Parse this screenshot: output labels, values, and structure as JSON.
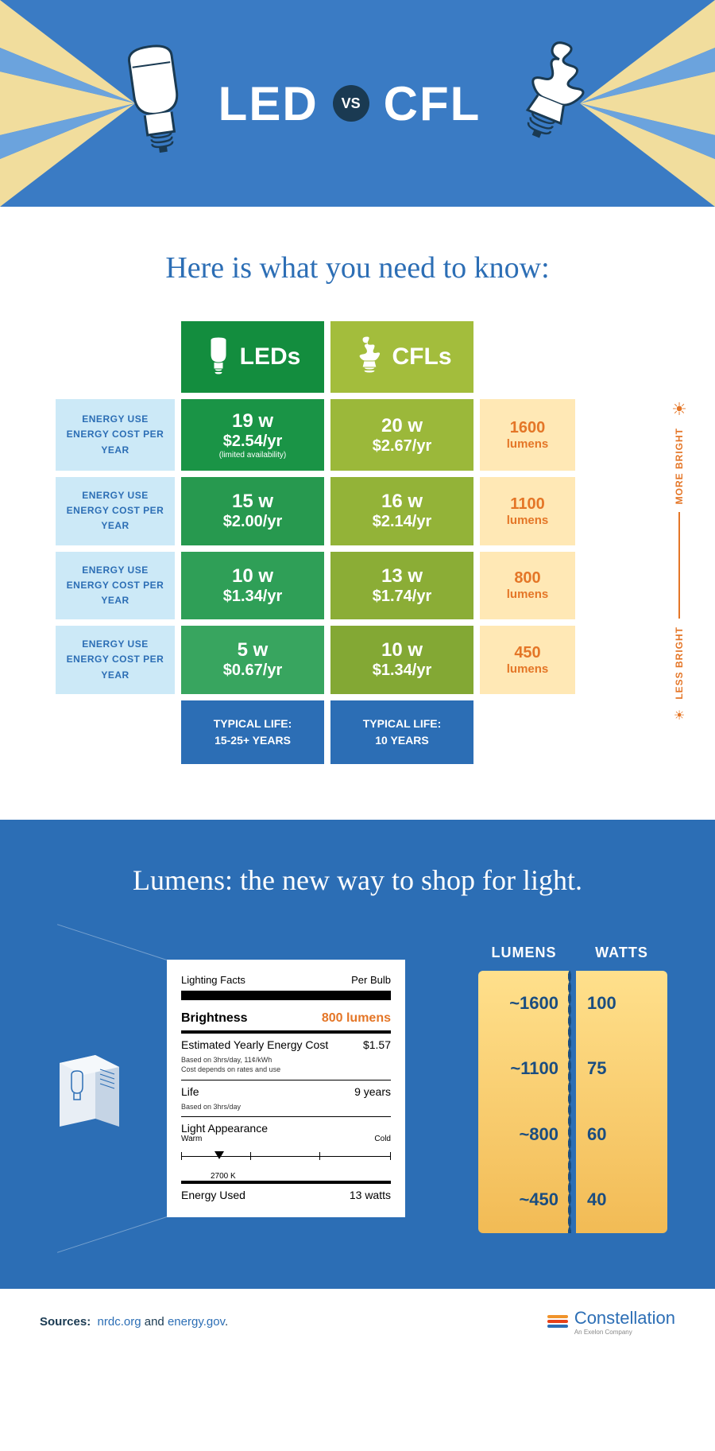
{
  "colors": {
    "blue": "#2c6eb5",
    "hero_blue": "#3a7bc4",
    "dark_blue": "#1a3a52",
    "ray_yellow": "#f1dd9d",
    "pale_blue": "#cce9f7",
    "lumen_bg": "#ffe8b5",
    "orange": "#e47627",
    "white": "#ffffff",
    "led_greens": [
      "#138d3e",
      "#1a9446",
      "#27994f",
      "#2f9f57",
      "#38a55f"
    ],
    "cfl_greens": [
      "#a3bd3c",
      "#9bb83a",
      "#93b338",
      "#8bad36",
      "#83a834"
    ]
  },
  "hero": {
    "left": "LED",
    "vs": "VS",
    "right": "CFL"
  },
  "intro": "Here is what you need to know:",
  "table": {
    "headers": {
      "led": "LEDs",
      "cfl": "CFLs"
    },
    "row_label_line1": "ENERGY USE",
    "row_label_line2": "ENERGY COST PER YEAR",
    "rows": [
      {
        "led_w": "19 w",
        "led_cost": "$2.54/yr",
        "led_note": "(limited availability)",
        "cfl_w": "20 w",
        "cfl_cost": "$2.67/yr",
        "lumens": "1600",
        "lumens_word": "lumens"
      },
      {
        "led_w": "15 w",
        "led_cost": "$2.00/yr",
        "led_note": "",
        "cfl_w": "16 w",
        "cfl_cost": "$2.14/yr",
        "lumens": "1100",
        "lumens_word": "lumens"
      },
      {
        "led_w": "10 w",
        "led_cost": "$1.34/yr",
        "led_note": "",
        "cfl_w": "13 w",
        "cfl_cost": "$1.74/yr",
        "lumens": "800",
        "lumens_word": "lumens"
      },
      {
        "led_w": "5 w",
        "led_cost": "$0.67/yr",
        "led_note": "",
        "cfl_w": "10 w",
        "cfl_cost": "$1.34/yr",
        "lumens": "450",
        "lumens_word": "lumens"
      }
    ],
    "life": {
      "led_l1": "TYPICAL LIFE:",
      "led_l2": "15-25+ YEARS",
      "cfl_l1": "TYPICAL LIFE:",
      "cfl_l2": "10 YEARS"
    },
    "scale": {
      "top": "MORE BRIGHT",
      "bottom": "LESS BRIGHT"
    }
  },
  "lumens": {
    "title": "Lumens: the new way to shop for light.",
    "facts": {
      "heading": "Lighting Facts",
      "per": "Per Bulb",
      "brightness_label": "Brightness",
      "brightness_value": "800 lumens",
      "cost_label": "Estimated Yearly Energy Cost",
      "cost_value": "$1.57",
      "cost_sub": "Based on 3hrs/day, 11¢/kWh\nCost depends on rates and use",
      "life_label": "Life",
      "life_value": "9 years",
      "life_sub": "Based on 3hrs/day",
      "appearance_label": "Light Appearance",
      "app_warm": "Warm",
      "app_cold": "Cold",
      "app_value": "2700 K",
      "energy_label": "Energy Used",
      "energy_value": "13 watts"
    },
    "columns": {
      "lumens_header": "LUMENS",
      "watts_header": "WATTS",
      "rows": [
        {
          "lumens": "~1600",
          "watts": "100"
        },
        {
          "lumens": "~1100",
          "watts": "75"
        },
        {
          "lumens": "~800",
          "watts": "60"
        },
        {
          "lumens": "~450",
          "watts": "40"
        }
      ]
    }
  },
  "footer": {
    "sources_label": "Sources:",
    "source1": "nrdc.org",
    "and": "and",
    "source2": "energy.gov",
    "brand": "Constellation",
    "brand_sub": "An Exelon Company",
    "wave_colors": [
      "#f0932b",
      "#e84118",
      "#2c6eb5"
    ]
  }
}
